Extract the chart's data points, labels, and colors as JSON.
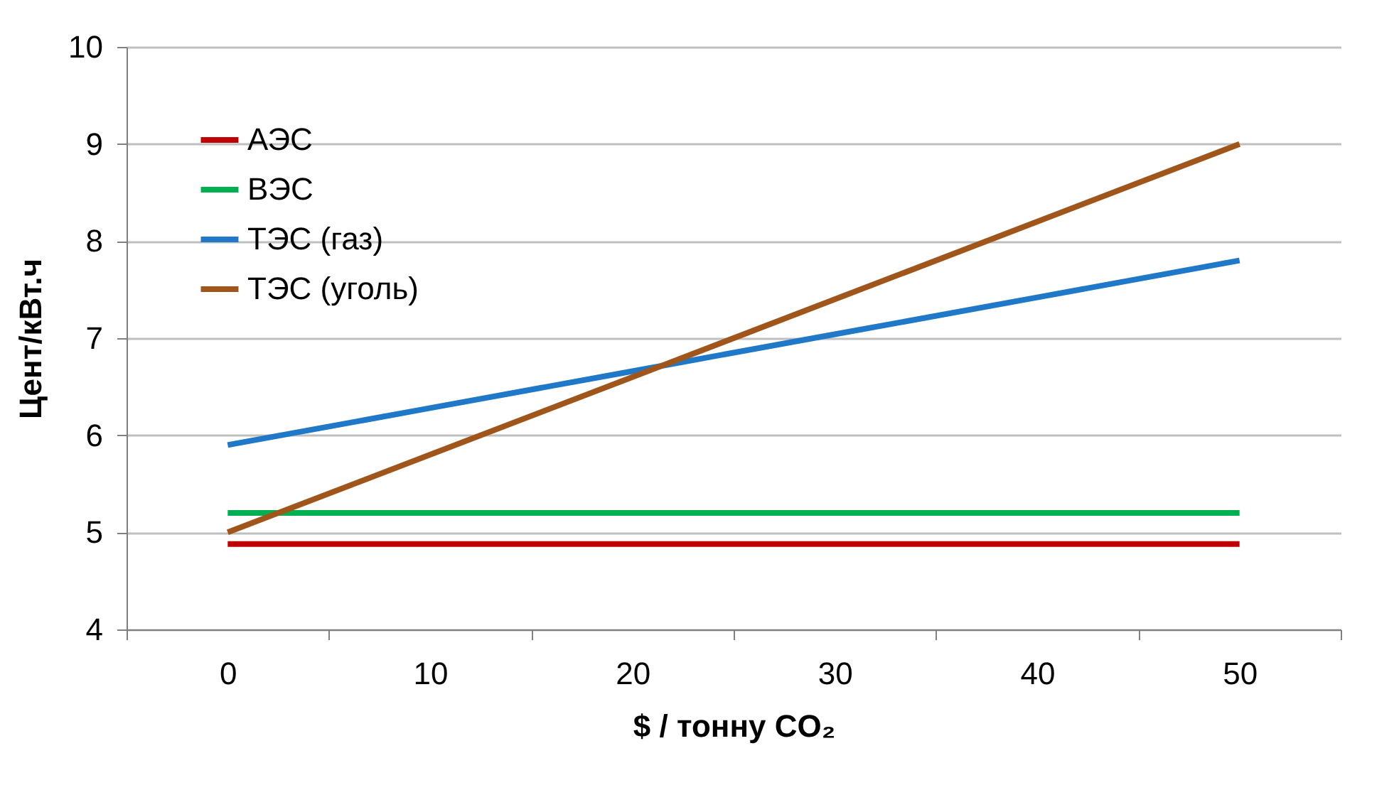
{
  "chart_data": {
    "type": "line",
    "categories": [
      "0",
      "10",
      "20",
      "30",
      "40",
      "50"
    ],
    "series": [
      {
        "name": "АЭС",
        "color": "#c00000",
        "values": [
          4.88,
          4.88,
          4.88,
          4.88,
          4.88,
          4.88
        ]
      },
      {
        "name": "ВЭС",
        "color": "#00b050",
        "values": [
          5.2,
          5.2,
          5.2,
          5.2,
          5.2,
          5.2
        ]
      },
      {
        "name": "ТЭС (газ)",
        "color": "#1f78c8",
        "values": [
          5.9,
          6.28,
          6.66,
          7.04,
          7.42,
          7.8
        ]
      },
      {
        "name": "ТЭС (уголь)",
        "color": "#a0561a",
        "values": [
          5.0,
          5.8,
          6.6,
          7.4,
          8.2,
          9.0
        ]
      }
    ],
    "xlabel": "$ / тонну CO₂",
    "ylabel": "Цент/кВт.ч",
    "ylim": [
      4,
      10
    ],
    "yticks": [
      4,
      5,
      6,
      7,
      8,
      9,
      10
    ],
    "grid": "y",
    "legend": "top left",
    "marker": "none",
    "line_style": "solid"
  }
}
